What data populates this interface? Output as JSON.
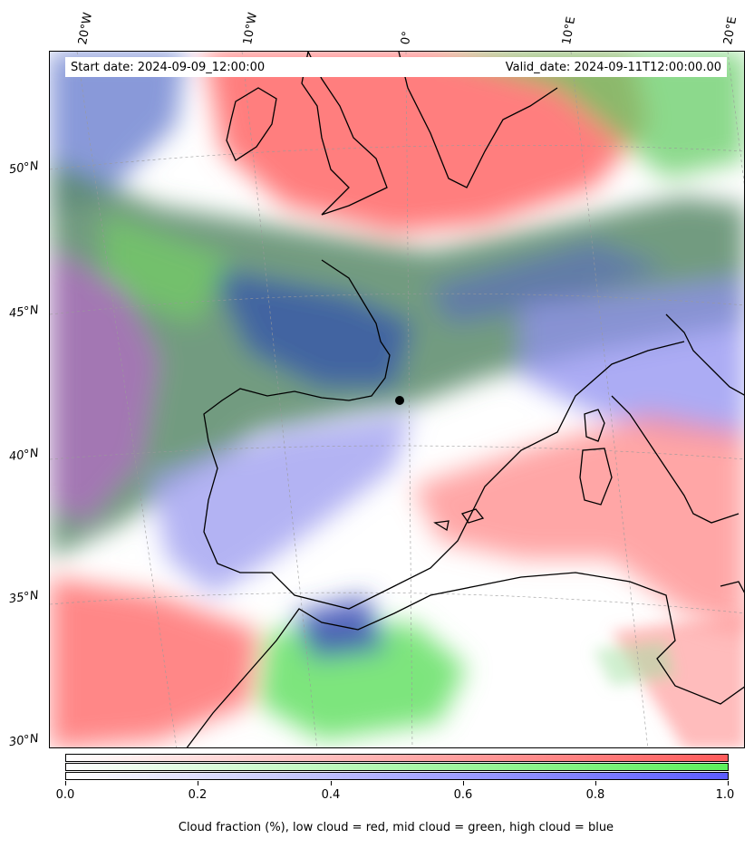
{
  "map": {
    "start_date": "Start date: 2024-09-09_12:00:00",
    "valid_date": "Valid_date: 2024-09-11T12:00:00.00",
    "longitude_labels": [
      "20°W",
      "10°W",
      "0°",
      "10°E",
      "20°E"
    ],
    "latitude_labels": [
      "50°N",
      "45°N",
      "40°N",
      "35°N",
      "30°N"
    ]
  },
  "colorbar": {
    "ticks": [
      "0.0",
      "0.2",
      "0.4",
      "0.6",
      "0.8",
      "1.0"
    ],
    "title": "Cloud fraction (%), low cloud = red, mid cloud = green, high cloud = blue",
    "colors": {
      "low": "#ff5c5c",
      "mid": "#5cf05c",
      "high": "#5c5cff"
    }
  }
}
